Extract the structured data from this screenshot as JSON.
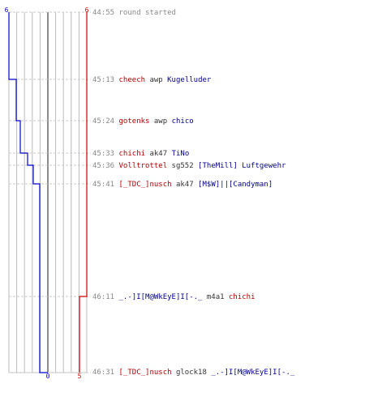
{
  "colors": {
    "team_blue": "#0000cc",
    "team_red": "#cc0000",
    "grid": "#bbbbbb",
    "center": "#666666"
  },
  "counter": {
    "blue_start": "6",
    "red_start": "6",
    "blue_end": "0",
    "red_end": "5"
  },
  "events": [
    {
      "time": "44:55",
      "text": "round started"
    },
    {
      "time": "45:13",
      "killer": "cheech",
      "killer_team": "red",
      "weapon": "awp",
      "victim": "Kugelluder",
      "victim_team": "blue"
    },
    {
      "time": "45:24",
      "killer": "gotenks",
      "killer_team": "red",
      "weapon": "awp",
      "victim": "chico",
      "victim_team": "blue"
    },
    {
      "time": "45:33",
      "killer": "chichi",
      "killer_team": "red",
      "weapon": "ak47",
      "victim": "TiNo",
      "victim_team": "blue"
    },
    {
      "time": "45:36",
      "killer": "Volltrottel",
      "killer_team": "red",
      "weapon": "sg552",
      "victim": "[TheMill] Luftgewehr",
      "victim_team": "blue"
    },
    {
      "time": "45:41",
      "killer": "[_TDC_]nusch",
      "killer_team": "red",
      "weapon": "ak47",
      "victim": "[M$W]||[Candyman]",
      "victim_team": "blue"
    },
    {
      "time": "46:11",
      "killer": "_.-]I[M@WkEyE]I[-._",
      "killer_team": "blue",
      "weapon": "m4a1",
      "victim": "chichi",
      "victim_team": "red"
    },
    {
      "time": "46:31",
      "killer": "[_TDC_]nusch",
      "killer_team": "red",
      "weapon": "glock18",
      "victim": "_.-]I[M@WkEyE]I[-._",
      "victim_team": "blue"
    }
  ]
}
